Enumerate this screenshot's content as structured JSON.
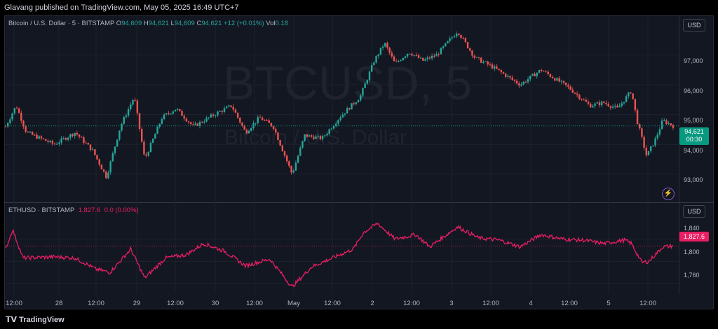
{
  "header": {
    "published": "Glavang published on TradingView.com, May 05, 2025 16:49 UTC+7"
  },
  "brand": "TradingView",
  "watermark": {
    "symbol": "BTCUSD, 5",
    "name": "Bitcoin / U.S. Dollar"
  },
  "colors": {
    "up": "#26a69a",
    "down": "#ef5350",
    "eth": "#e91e63",
    "bg": "#131722"
  },
  "btc_legend": {
    "title": "Bitcoin / U.S. Dollar · 5 · BITSTAMP",
    "o_label": "O",
    "o": "94,609",
    "h_label": "H",
    "h": "94,621",
    "l_label": "L",
    "l": "94,609",
    "c_label": "C",
    "c": "94,621",
    "change": "+12 (+0.01%)",
    "vol_label": "Vol",
    "vol": "0.18"
  },
  "eth_legend": {
    "title": "ETHUSD · BITSTAMP",
    "last": "1,827.6",
    "change": "0.0 (0.00%)"
  },
  "currency_top": "USD",
  "currency_bottom": "USD",
  "btc_price_tag": {
    "price": "94,621",
    "countdown": "00:30"
  },
  "eth_price_tag": {
    "price": "1,827.6"
  },
  "chart_data": [
    {
      "type": "candlestick",
      "title": "Bitcoin / U.S. Dollar · 5 · BITSTAMP",
      "ylim": [
        92200,
        97900
      ],
      "yticks": [
        "97,000",
        "96,000",
        "95,000",
        "94,000",
        "93,000"
      ],
      "ytick_values": [
        97000,
        96000,
        95000,
        94000,
        93000
      ],
      "last_price": 94621,
      "x_index_range": [
        0,
        1000
      ],
      "path": [
        [
          0,
          94600
        ],
        [
          15,
          95300
        ],
        [
          30,
          94400
        ],
        [
          70,
          94000
        ],
        [
          100,
          94400
        ],
        [
          125,
          93800
        ],
        [
          145,
          92900
        ],
        [
          165,
          94600
        ],
        [
          185,
          95600
        ],
        [
          200,
          93500
        ],
        [
          225,
          94900
        ],
        [
          245,
          95200
        ],
        [
          270,
          94600
        ],
        [
          300,
          95000
        ],
        [
          325,
          95300
        ],
        [
          345,
          94400
        ],
        [
          365,
          94900
        ],
        [
          385,
          94600
        ],
        [
          412,
          93000
        ],
        [
          430,
          94300
        ],
        [
          455,
          94200
        ],
        [
          480,
          94900
        ],
        [
          510,
          95600
        ],
        [
          530,
          96800
        ],
        [
          545,
          97400
        ],
        [
          560,
          96700
        ],
        [
          580,
          97100
        ],
        [
          600,
          96800
        ],
        [
          620,
          97000
        ],
        [
          650,
          97800
        ],
        [
          675,
          96900
        ],
        [
          700,
          96600
        ],
        [
          740,
          96000
        ],
        [
          770,
          96500
        ],
        [
          790,
          96200
        ],
        [
          810,
          95900
        ],
        [
          840,
          95300
        ],
        [
          860,
          95400
        ],
        [
          880,
          95200
        ],
        [
          900,
          95800
        ],
        [
          908,
          94800
        ],
        [
          922,
          93600
        ],
        [
          935,
          94200
        ],
        [
          945,
          94800
        ],
        [
          960,
          94621
        ]
      ]
    },
    {
      "type": "line",
      "title": "ETHUSD · BITSTAMP",
      "series": [
        {
          "name": "ETHUSD",
          "color": "#e91e63"
        }
      ],
      "ylim": [
        1744,
        1882
      ],
      "yticks": [
        "1,840",
        "1,800",
        "1,760"
      ],
      "ytick_values": [
        1840,
        1800,
        1760
      ],
      "last_price": 1827.6,
      "path": [
        [
          0,
          1821
        ],
        [
          10,
          1857
        ],
        [
          25,
          1806
        ],
        [
          70,
          1808
        ],
        [
          100,
          1806
        ],
        [
          130,
          1786
        ],
        [
          150,
          1780
        ],
        [
          180,
          1822
        ],
        [
          200,
          1770
        ],
        [
          230,
          1806
        ],
        [
          260,
          1812
        ],
        [
          285,
          1832
        ],
        [
          315,
          1818
        ],
        [
          345,
          1792
        ],
        [
          380,
          1804
        ],
        [
          412,
          1754
        ],
        [
          440,
          1790
        ],
        [
          470,
          1806
        ],
        [
          500,
          1822
        ],
        [
          515,
          1852
        ],
        [
          535,
          1868
        ],
        [
          560,
          1840
        ],
        [
          590,
          1848
        ],
        [
          610,
          1826
        ],
        [
          650,
          1862
        ],
        [
          680,
          1842
        ],
        [
          710,
          1838
        ],
        [
          740,
          1826
        ],
        [
          770,
          1848
        ],
        [
          800,
          1840
        ],
        [
          830,
          1838
        ],
        [
          860,
          1832
        ],
        [
          890,
          1838
        ],
        [
          900,
          1832
        ],
        [
          915,
          1798
        ],
        [
          925,
          1800
        ],
        [
          945,
          1826
        ],
        [
          960,
          1827.6
        ]
      ]
    }
  ],
  "x_axis": {
    "labels": [
      "12:00",
      "28",
      "12:00",
      "29",
      "12:00",
      "30",
      "12:00",
      "May",
      "12:00",
      "2",
      "12:00",
      "3",
      "12:00",
      "4",
      "12:00",
      "5",
      "12:00"
    ],
    "positions": [
      20,
      84,
      137,
      195,
      250,
      307,
      363,
      419,
      474,
      531,
      587,
      644,
      700,
      757,
      812,
      868,
      924
    ]
  }
}
